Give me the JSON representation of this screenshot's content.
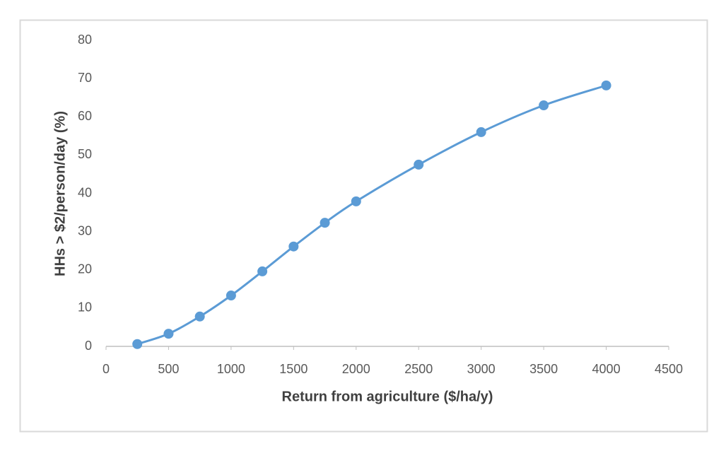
{
  "chart_data": {
    "type": "line",
    "x_label": "Return from agriculture ($/ha/y)",
    "y_label": "HHs > $2/person/day (%)",
    "x": [
      250,
      500,
      750,
      1000,
      1250,
      1500,
      1750,
      2000,
      2500,
      3000,
      3500,
      4000
    ],
    "series": [
      {
        "color": "#5b9bd5",
        "values": [
          0.6,
          3.3,
          7.8,
          13.3,
          19.6,
          26.1,
          32.3,
          37.9,
          47.5,
          56.0,
          63.0,
          68.2
        ]
      }
    ],
    "xlim": [
      0,
      4500
    ],
    "xticks": [
      0,
      500,
      1000,
      1500,
      2000,
      2500,
      3000,
      3500,
      4000,
      4500
    ],
    "ylim": [
      0,
      80
    ],
    "yticks": [
      0,
      10,
      20,
      30,
      40,
      50,
      60,
      70,
      80
    ],
    "grid": false,
    "smooth": true
  }
}
